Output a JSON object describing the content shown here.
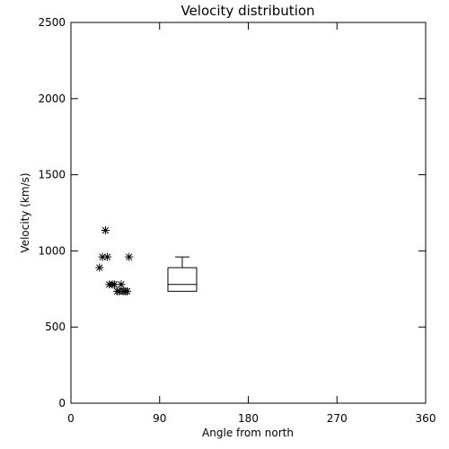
{
  "chart_data": {
    "type": "scatter",
    "title": "Velocity distribution",
    "xlabel": "Angle from north",
    "ylabel": "Velocity (km/s)",
    "xlim": [
      0,
      360
    ],
    "ylim": [
      0,
      2500
    ],
    "xticks": [
      0,
      90,
      180,
      270,
      360
    ],
    "yticks": [
      0,
      500,
      1000,
      1500,
      2000,
      2500
    ],
    "grid": false,
    "points": [
      {
        "x": 29,
        "y": 890
      },
      {
        "x": 32,
        "y": 960
      },
      {
        "x": 35,
        "y": 1135
      },
      {
        "x": 37,
        "y": 960
      },
      {
        "x": 39,
        "y": 780
      },
      {
        "x": 42,
        "y": 780
      },
      {
        "x": 44,
        "y": 780
      },
      {
        "x": 47,
        "y": 735
      },
      {
        "x": 49,
        "y": 735
      },
      {
        "x": 51,
        "y": 780
      },
      {
        "x": 53,
        "y": 735
      },
      {
        "x": 55,
        "y": 735
      },
      {
        "x": 57,
        "y": 735
      },
      {
        "x": 59,
        "y": 960
      }
    ],
    "boxplot": {
      "x": 113,
      "min": 735,
      "q1": 735,
      "median": 780,
      "q3": 890,
      "max": 960
    }
  }
}
